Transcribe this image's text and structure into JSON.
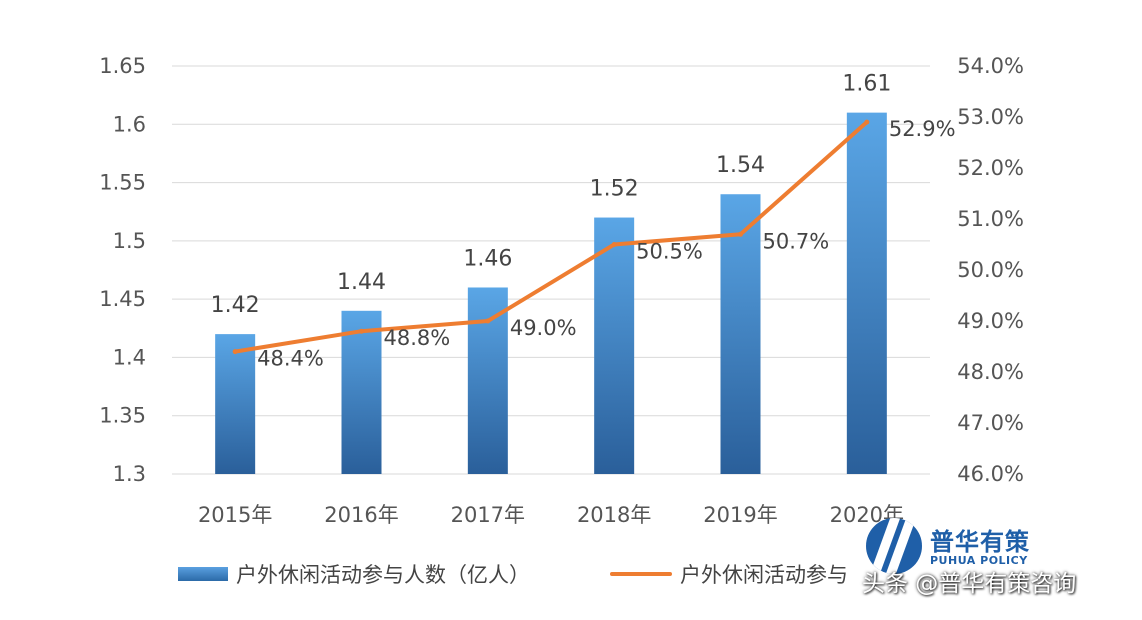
{
  "chart_data": {
    "type": "bar",
    "categories": [
      "2015年",
      "2016年",
      "2017年",
      "2018年",
      "2019年",
      "2020年"
    ],
    "series": [
      {
        "name": "户外休闲活动参与人数（亿人）",
        "type": "bar",
        "axis": "left",
        "values": [
          1.42,
          1.44,
          1.46,
          1.52,
          1.54,
          1.61
        ],
        "labels": [
          "1.42",
          "1.44",
          "1.46",
          "1.52",
          "1.54",
          "1.61"
        ],
        "color": "#3b7fc4"
      },
      {
        "name": "户外休闲活动参与",
        "type": "line",
        "axis": "right",
        "values": [
          48.4,
          48.8,
          49.0,
          50.5,
          50.7,
          52.9
        ],
        "labels": [
          "48.4%",
          "48.8%",
          "49.0%",
          "50.5%",
          "50.7%",
          "52.9%"
        ],
        "color": "#ee7d31"
      }
    ],
    "y_left": {
      "ylim": [
        1.3,
        1.65
      ],
      "ticks": [
        "1.3",
        "1.35",
        "1.4",
        "1.45",
        "1.5",
        "1.55",
        "1.6",
        "1.65"
      ]
    },
    "y_right": {
      "ylim": [
        46.0,
        54.0
      ],
      "ticks": [
        "46.0%",
        "47.0%",
        "48.0%",
        "49.0%",
        "50.0%",
        "51.0%",
        "52.0%",
        "53.0%",
        "54.0%"
      ]
    },
    "grid": true,
    "legend": "bottom"
  },
  "legend": {
    "bar_label": "户外休闲活动参与人数（亿人）",
    "line_label": "户外休闲活动参与"
  },
  "logo": {
    "name": "普华有策",
    "sub": "PUHUA POLICY"
  },
  "watermark": "头条 @普华有策咨询"
}
